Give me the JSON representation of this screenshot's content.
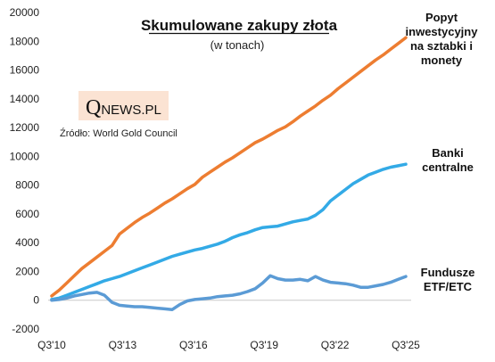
{
  "chart_data": {
    "type": "line",
    "title": "Skumulowane zakupy złota",
    "subtitle": "(w tonach)",
    "source": "Źródło: World Gold Council",
    "logo": {
      "q": "Q",
      "rest": "NEWS.PL",
      "background": "#fbe3d3"
    },
    "xlabel": "",
    "ylabel": "",
    "ylim": [
      -2000,
      20000
    ],
    "yticks": [
      -2000,
      0,
      2000,
      4000,
      6000,
      8000,
      10000,
      12000,
      14000,
      16000,
      18000,
      20000
    ],
    "xticks": [
      "Q3'10",
      "Q3'13",
      "Q3'16",
      "Q3'19",
      "Q3'22",
      "Q3'25"
    ],
    "x_range": [
      "Q3'10",
      "Q3'25"
    ],
    "grid": false,
    "legend": "inline-right",
    "series": [
      {
        "name": "Popyt inwestycyjny na sztabki i monety",
        "label_lines": [
          "Popyt",
          "inwestycyjny",
          "na sztabki i",
          "monety"
        ],
        "color": "#ed7d31",
        "values": [
          300,
          700,
          1200,
          1700,
          2200,
          2600,
          3000,
          3400,
          3800,
          4600,
          5000,
          5400,
          5750,
          6050,
          6400,
          6750,
          7050,
          7400,
          7750,
          8050,
          8550,
          8900,
          9250,
          9600,
          9900,
          10250,
          10600,
          10950,
          11200,
          11500,
          11800,
          12050,
          12400,
          12800,
          13150,
          13500,
          13900,
          14250,
          14700,
          15100,
          15500,
          15900,
          16300,
          16700,
          17050,
          17450,
          17850,
          18250
        ]
      },
      {
        "name": "Banki centralne",
        "label_lines": [
          "Banki",
          "centralne"
        ],
        "color": "#33aae6",
        "values": [
          50,
          150,
          350,
          550,
          750,
          950,
          1150,
          1350,
          1500,
          1650,
          1850,
          2050,
          2250,
          2450,
          2650,
          2850,
          3050,
          3200,
          3350,
          3500,
          3600,
          3750,
          3900,
          4100,
          4350,
          4550,
          4700,
          4900,
          5050,
          5100,
          5150,
          5300,
          5450,
          5550,
          5650,
          5900,
          6300,
          6900,
          7300,
          7700,
          8100,
          8400,
          8700,
          8900,
          9100,
          9250,
          9350,
          9450
        ]
      },
      {
        "name": "Fundusze ETF/ETC",
        "label_lines": [
          "Fundusze",
          "ETF/ETC"
        ],
        "color": "#5b9bd5",
        "values": [
          0,
          50,
          150,
          300,
          400,
          500,
          550,
          350,
          -150,
          -350,
          -400,
          -450,
          -450,
          -500,
          -550,
          -600,
          -650,
          -300,
          -50,
          50,
          100,
          150,
          250,
          300,
          350,
          450,
          600,
          800,
          1200,
          1700,
          1500,
          1400,
          1400,
          1450,
          1350,
          1650,
          1400,
          1250,
          1200,
          1150,
          1050,
          900,
          900,
          1000,
          1100,
          1250,
          1450,
          1650
        ]
      }
    ]
  }
}
